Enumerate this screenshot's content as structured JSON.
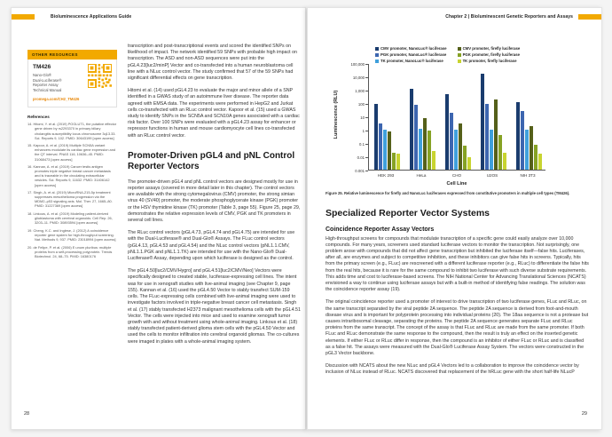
{
  "accent_color": "#F2A900",
  "left_page": {
    "header": "Bioluminescence Applications Guide",
    "page_number": "28",
    "sidebar": {
      "box_title": "OTHER RESOURCES",
      "resource_code": "TM426",
      "resource_lines": [
        "Nano-Glo®",
        "Dual-Luciferase®",
        "Reporter Assay",
        "Technical Manual"
      ],
      "link": "promega.com/CH2_TM426",
      "references_title": "References",
      "references": [
        "14. Hitomi, Y. et al. (2019) POGLUT1, the putative effector gene driven by rs2293370 in primary biliary cholangitis susceptibility locus chromosome 3q13.33. Sci. Reports 9, 102. PMID: 30643199 [open access]",
        "15. Kapoor, A. et al. (2019) Multiple SCN5A variant enhancers modulate its cardiac gene expression and the QT interval. PNAS 116, 10636–45. PMID: 31068473 [open access]",
        "16. Kannan, A. et al. (2019) Cancer testis antigen promotes triple negative breast cancer metastasis and is traceable in the circulating extracellular vesicles. Sci. Reports 9, 11632. PMID: 31406142 [open access]",
        "17. Singh, A. et al. (2019) MicroRNA-215-5p treatment suppresses mesothelioma progression via the MDM2–p53 signaling axis. Mol. Ther. 27, 1665–80. PMID: 31227369 [open access]",
        "18. Linkous, A. et al. (2019) Modeling patient-derived glioblastoma with cerebral organoids. Cell Rep. 26, 3203–11. PMID: 30893594 [open access]",
        "19. Cheng, K.C. and Inglese, J. (2012) A coincidence reporter gene system for high-throughput screening. Nat. Methods 9, 937. PMID: 23018994 [open access]",
        "20. de Felipe, P. et al. (2006) E unum pluribus: multiple proteins from a self-processing polyprotein. Trends Biotechnol. 24, 68–75. PMID: 16380176"
      ]
    },
    "intro_paragraphs": [
      "transcription and post-transcriptional events and scored the identified SNPs on likelihood of impact. The network identified 59 SNPs with probable high impact on transcription. The ASD and non-ASD sequences were put into the pGL4.23[luc2/minP] Vector and co-transfected into a human neuroblastoma cell line with a NLuc control vector. The study confirmed that 57 of the 59 SNPs had significant differential effects on gene transcription.",
      "Hitomi et al. (14) used pGL4.23 to evaluate the major and minor allele of a SNP identified in a GWAS study of an autoimmune liver disease. The reporter data agreed with EMSA data. The experiments were performed in HepG2 and Jurkat cells co-transfected with an RLuc control vector. Kapoor et al. (15) used a GWAS study to identify SNPs in the SCN5A and SCN10A genes associated with a cardiac risk factor. Over 100 SNPs were evaluated with a pGL4.23 assay for enhancer or repressor functions in human and mouse cardiomyocyte cell lines co-transfected with an RLuc control vector."
    ],
    "section_heading": "Promoter-Driven pGL4 and pNL Control Reporter Vectors",
    "section_paragraphs": [
      "The promoter-driven pGL4 and pNL control vectors are designed mostly for use in reporter assays (covered in more detail later in this chapter). The control vectors are available with the strong cytomegalovirus (CMV) promoter, the strong simian virus 40 (SV40) promoter, the moderate phosphoglycerate kinase (PGK) promoter or the HSV thymidine kinase (TK) promoter (Table 3, page 55). Figure 25, page 29, demonstrates the relative expression levels of CMV, PGK and TK promoters in several cell lines.",
      "The RLuc control vectors (pGL4.73, pGL4.74 and pGL4.75) are intended for use with the Dual-Luciferase® and Dual-Glo® Assays. The FLuc control vectors (pGL4.13, pGL4.53 and pGL4.54) and the NLuc control vectors (pNL1.1.CMV, pNL1.1.PGK and pNL1.1.TK) are intended for use with the Nano-Glo® Dual-Luciferase® Assay, depending upon which luciferase is designed as the control.",
      "The pGL4.50[luc2/CMV/Hygro] and pGL4.51[luc2/CMV/Neo] Vectors were specifically designed to created stable, luciferase-expressing cell lines. The intent was for use in xenograft studies with live-animal imaging (see Chapter 9, page 155). Kannan et al. (16) used the pGL4.50 Vector to stably transfect SUM-159 cells. The FLuc-expressing cells combined with live-animal imaging were used to investigate factors involved in triple-negative breast cancer cell metastasis. Singh et al. (17) stably transfected H2373 malignant mesothelioma cells with the pGL4.51 Vector. The cells were injected into mice and used to examine xenograft tumor growth with and without treatment using whole-animal imaging. Linkous et al. (18) stably transfected patient-derived glioma stem cells with the pGL4.50 Vector and used the cells to monitor infiltration into cerebral organoid gliomas. The co-cultures were imaged in plates with a whole-animal imaging system."
    ]
  },
  "right_page": {
    "header": "Chapter 2  |  Bioluminescent Genetic Reporters and Assays",
    "page_number": "29",
    "figure_caption": "Figure 25. Relative luminescence for firefly and NanoLuc luciferases expressed from constitutive promoters in multiple cell types (TM426).",
    "section_heading": "Specialized Reporter Vector Systems",
    "subsection_heading": "Coincidence Reporter Assay Vectors",
    "paragraphs": [
      "High-throughput screens for compounds that modulate transcription of a specific gene could easily analyze over 10,000 compounds. For many years, screeners used standard luciferase vectors to monitor the transcription. Not surprisingly, one problem arose with compounds that did not affect gene transcription but inhibited the luciferase itself—false hits. Luciferases, after all, are enzymes and subject to competitive inhibition, and these inhibitors can give false hits in screens. Typically, hits from the primary screen (e.g., FLuc) are rescreened with a different luciferase reporter (e.g., RLuc) to differentiate the false hits from the real hits, because it is rare for the same compound to inhibit two luciferase with such diverse substrate requirements. This adds time and cost to luciferase-based screens. The NIH National Center for Advancing Translational Sciences (NCATS) envisioned a way to continue using luciferase assays but with a built-in method of identifying false readings. The solution was the coincidence reporter assay (19).",
      "The original coincidence reporter used a promoter of interest to drive transcription of two luciferase genes, FLuc and RLuc, on the same transcript separated by the viral peptide 2A sequence. The peptide 2A sequence is derived from foot-and-mouth disease virus and is important for polyprotein processing into individual proteins (20). The 18aa sequence is not a protease but causes intraribosomal cleavage, separating the proteins. The peptide 2A sequence generates separate FLuc and RLuc proteins from the same transcript. The concept of the assay is that FLuc and RLuc are made from the same promoter. If both FLuc and RLuc demonstrate the same response to the compound, then the result is truly an effect on the inserted genetic elements. If either FLuc or RLuc differ in response, then the compound is an inhibitor of either FLuc or RLuc and is classified as a false hit. The assays were measured with the Dual-Glo® Luciferase Assay System. The vectors were constructed in the pGL3 Vector backbone.",
      "Discussion with NCATS about the new NLuc and pGL4 Vectors led to a collaboration to improve the coincidence vector by inclusion of NLuc instead of RLuc. NCATS discovered that replacement of the hRLuc gene with the short half-life NLucP"
    ]
  },
  "chart_data": {
    "type": "bar",
    "scale": "log",
    "title": "",
    "xlabel": "Cell Line",
    "ylabel": "Luminescence (RLU)",
    "ylim": [
      0.001,
      100000
    ],
    "yticks": [
      "100,000",
      "10,000",
      "1,000",
      "100",
      "10",
      "1",
      "0.1",
      "0.01",
      "0.001"
    ],
    "categories": [
      "HEK 293",
      "HeLa",
      "CHO",
      "U2OS",
      "NIH 3T3"
    ],
    "series": [
      {
        "name": "CMV promoter, NanoLuc® luciferase",
        "color": "#1A3C6E",
        "values": [
          90,
          1200,
          450,
          15000,
          120
        ]
      },
      {
        "name": "PGK promoter, NanoLuc® luciferase",
        "color": "#3D66B0",
        "values": [
          3,
          75,
          18,
          80,
          25
        ]
      },
      {
        "name": "TK promoter, NanoLuc® luciferase",
        "color": "#3FA0DC",
        "values": [
          1,
          1.1,
          1,
          1,
          1
        ]
      },
      {
        "name": "CMV promoter, firefly luciferase",
        "color": "#55601A",
        "values": [
          0.7,
          7,
          3,
          200,
          2
        ]
      },
      {
        "name": "PGK promoter, firefly luciferase",
        "color": "#86A224",
        "values": [
          0.02,
          0.9,
          0.06,
          0.4,
          0.07
        ]
      },
      {
        "name": "TK promoter, firefly luciferase",
        "color": "#C8D430",
        "values": [
          0.015,
          0.025,
          0.008,
          0.02,
          0.015
        ]
      }
    ],
    "legend_position": "top",
    "grid": false
  }
}
